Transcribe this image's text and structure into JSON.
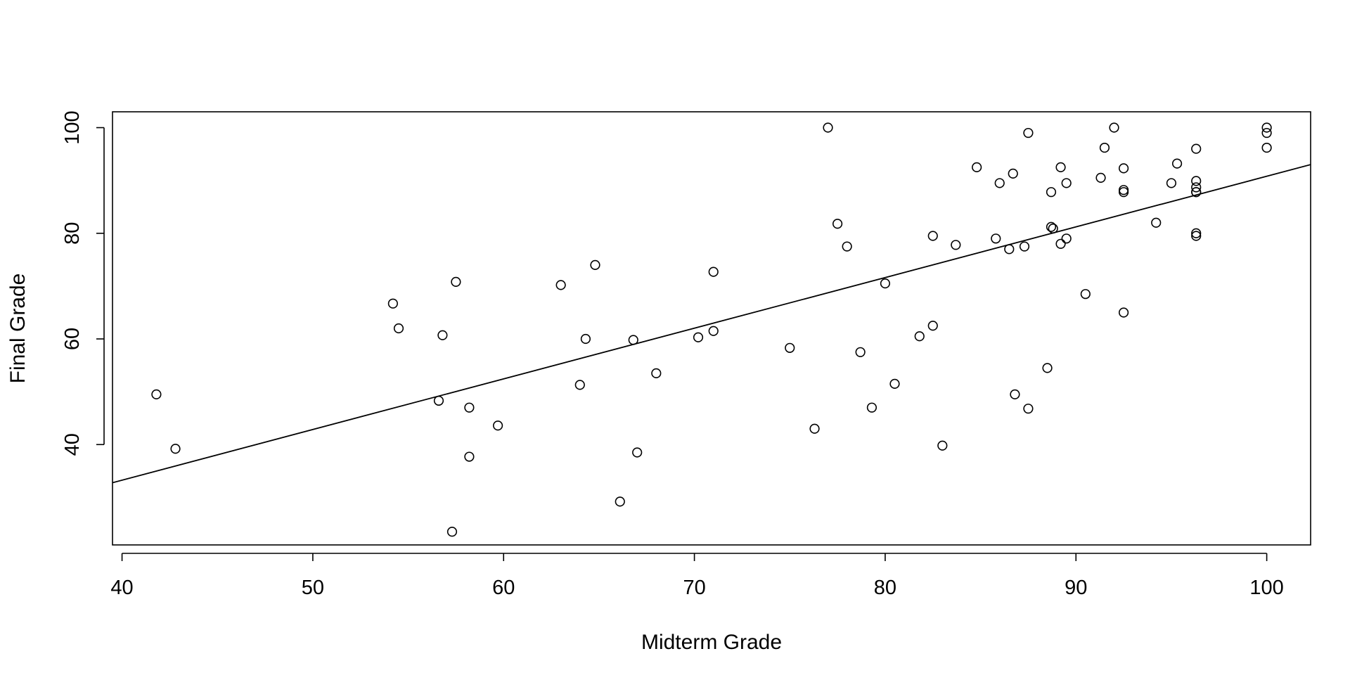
{
  "chart_data": {
    "type": "scatter",
    "title": "",
    "xlabel": "Midterm Grade",
    "ylabel": "Final Grade",
    "xlim": [
      39.5,
      102.3
    ],
    "ylim": [
      21,
      103
    ],
    "xticks": [
      40,
      50,
      60,
      70,
      80,
      90,
      100
    ],
    "yticks": [
      40,
      60,
      80,
      100
    ],
    "grid": false,
    "legend": "none",
    "colors": {
      "points": "#000000",
      "line": "#000000",
      "axes": "#000000"
    },
    "points": {
      "x": [
        41.8,
        42.8,
        54.2,
        54.5,
        56.6,
        56.8,
        57.3,
        57.5,
        58.2,
        58.2,
        59.7,
        63.0,
        64.0,
        64.3,
        64.8,
        66.1,
        66.8,
        67.0,
        68.0,
        70.2,
        71.0,
        71.0,
        75.0,
        76.3,
        77.0,
        77.5,
        78.0,
        78.7,
        79.3,
        80.0,
        80.5,
        81.8,
        82.5,
        82.5,
        83.0,
        83.7,
        84.8,
        85.8,
        86.0,
        86.5,
        86.7,
        86.8,
        87.3,
        87.5,
        87.5,
        88.5,
        88.7,
        88.7,
        88.8,
        89.2,
        89.2,
        89.5,
        89.5,
        90.5,
        91.3,
        91.5,
        92.0,
        92.5,
        92.5,
        92.5,
        92.5,
        94.2,
        95.0,
        95.3,
        96.3,
        96.3,
        96.3,
        96.3,
        96.3,
        96.3,
        96.3,
        100.0,
        100.0,
        100.0
      ],
      "y": [
        49.5,
        39.2,
        66.7,
        62.0,
        48.3,
        60.7,
        23.5,
        70.8,
        47.0,
        37.7,
        43.6,
        70.2,
        51.3,
        60.0,
        74.0,
        29.2,
        59.8,
        38.5,
        53.5,
        60.3,
        72.7,
        61.5,
        58.3,
        43.0,
        100.0,
        81.8,
        77.5,
        57.5,
        47.0,
        70.5,
        51.5,
        60.5,
        79.5,
        62.5,
        39.8,
        77.8,
        92.5,
        79.0,
        89.5,
        77.0,
        91.3,
        49.5,
        77.5,
        99.0,
        46.8,
        54.5,
        87.8,
        81.2,
        80.9,
        92.5,
        78.0,
        89.5,
        79.0,
        68.5,
        90.5,
        96.2,
        100.0,
        92.3,
        88.2,
        87.8,
        65.0,
        82.0,
        89.5,
        93.2,
        96.0,
        89.9,
        88.7,
        87.8,
        80.0,
        79.5,
        87.8,
        100.0,
        99.0,
        96.2
      ]
    },
    "regression_line": {
      "slope": 0.959,
      "intercept": -5.1
    }
  }
}
